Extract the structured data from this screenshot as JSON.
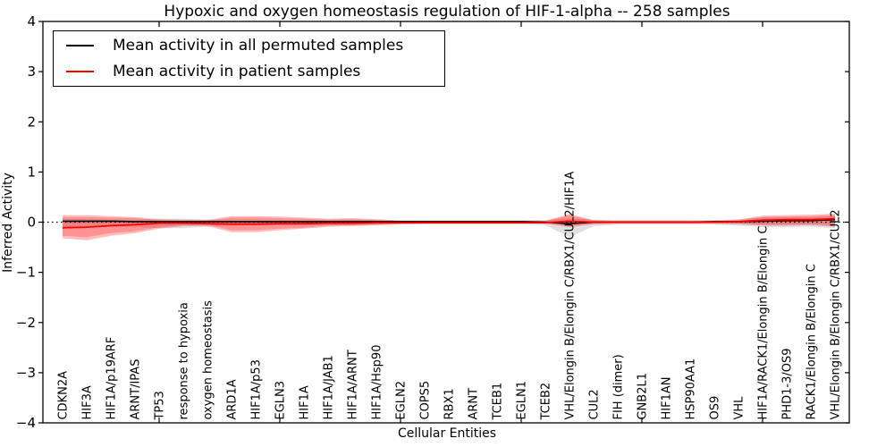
{
  "title": "Hypoxic and oxygen homeostasis regulation of HIF-1-alpha -- 258 samples",
  "axes": {
    "x_label": "Cellular Entities",
    "y_label": "Inferred Activity"
  },
  "legend": {
    "items": [
      {
        "label": "Mean activity in all permuted samples",
        "color": "#000000"
      },
      {
        "label": "Mean activity in patient samples",
        "color": "#ff0000"
      }
    ]
  },
  "chart_data": {
    "type": "line",
    "title": "Hypoxic and oxygen homeostasis regulation of HIF-1-alpha -- 258 samples",
    "xlabel": "Cellular Entities",
    "ylabel": "Inferred Activity",
    "ylim": [
      -4,
      4
    ],
    "grid": false,
    "background": "#ffffff",
    "legend_position": "upper left",
    "y_ticks": [
      {
        "value": 4,
        "label": "4"
      },
      {
        "value": 3,
        "label": "3"
      },
      {
        "value": 2,
        "label": "2"
      },
      {
        "value": 1,
        "label": "1"
      },
      {
        "value": 0,
        "label": "0"
      },
      {
        "value": -1,
        "label": "−1"
      },
      {
        "value": -2,
        "label": "−2"
      },
      {
        "value": -3,
        "label": "−3"
      },
      {
        "value": -4,
        "label": "−4"
      }
    ],
    "x_secondary_tick_indices": [
      4,
      9,
      14,
      19,
      24,
      29
    ],
    "zero_line": {
      "style": "dotted",
      "color": "#000000",
      "y": 0
    },
    "categories": [
      "CDKN2A",
      "HIF3A",
      "HIF1A/p19ARF",
      "ARNT/IPAS",
      "TP53",
      "response to hypoxia",
      "oxygen homeostasis",
      "ARD1A",
      "HIF1A/p53",
      "EGLN3",
      "HIF1A",
      "HIF1A/JAB1",
      "HIF1A/ARNT",
      "HIF1A/Hsp90",
      "EGLN2",
      "COPS5",
      "RBX1",
      "ARNT",
      "TCEB1",
      "EGLN1",
      "TCEB2",
      "VHL/Elongin B/Elongin C/RBX1/CUL2/HIF1A",
      "CUL2",
      "FIH (dimer)",
      "GNB2L1",
      "HIF1AN",
      "HSP90AA1",
      "OS9",
      "VHL",
      "HIF1A/RACK1/Elongin B/Elongin C",
      "PHD1-3/OS9",
      "RACK1/Elongin B/Elongin C",
      "VHL/Elongin B/Elongin C/RBX1/CUL2"
    ],
    "series": [
      {
        "name": "Mean activity in all permuted samples",
        "color": "#000000",
        "width": 1.6,
        "values": [
          0.02,
          0.02,
          0.02,
          0.01,
          0.01,
          0.01,
          0.01,
          0.01,
          0.01,
          0.01,
          0.01,
          0.01,
          0.01,
          0.01,
          0.01,
          0.01,
          0.01,
          0.01,
          0.01,
          0.01,
          0.0,
          -0.03,
          0.0,
          0.0,
          0.0,
          0.0,
          0.0,
          0.01,
          0.01,
          0.02,
          0.03,
          0.03,
          0.05
        ]
      },
      {
        "name": "Mean activity in patient samples",
        "color": "#ff0000",
        "width": 1.8,
        "values": [
          -0.11,
          -0.1,
          -0.07,
          -0.05,
          -0.02,
          -0.02,
          -0.03,
          -0.04,
          -0.04,
          -0.03,
          -0.03,
          -0.02,
          -0.02,
          -0.01,
          -0.01,
          -0.01,
          -0.01,
          -0.01,
          -0.01,
          -0.01,
          -0.01,
          0.02,
          0.0,
          0.0,
          0.0,
          0.0,
          0.0,
          0.0,
          0.01,
          0.04,
          0.05,
          0.05,
          0.07
        ]
      }
    ],
    "bands": [
      {
        "name": "permuted-samples-range",
        "color": "#000000",
        "opacity": 0.12,
        "upper": [
          0.06,
          0.06,
          0.05,
          0.05,
          0.07,
          0.07,
          0.05,
          0.04,
          0.04,
          0.04,
          0.04,
          0.04,
          0.04,
          0.04,
          0.04,
          0.04,
          0.04,
          0.04,
          0.04,
          0.04,
          0.04,
          0.08,
          0.05,
          0.04,
          0.04,
          0.04,
          0.04,
          0.04,
          0.06,
          0.1,
          0.1,
          0.1,
          0.12
        ],
        "lower": [
          -0.1,
          -0.1,
          -0.09,
          -0.09,
          -0.12,
          -0.12,
          -0.09,
          -0.07,
          -0.07,
          -0.06,
          -0.06,
          -0.06,
          -0.06,
          -0.06,
          -0.05,
          -0.05,
          -0.05,
          -0.05,
          -0.05,
          -0.05,
          -0.06,
          -0.3,
          -0.08,
          -0.05,
          -0.05,
          -0.05,
          -0.05,
          -0.05,
          -0.07,
          -0.1,
          -0.1,
          -0.09,
          -0.12
        ]
      },
      {
        "name": "patient-samples-range-outer",
        "color": "#ff0000",
        "opacity": 0.26,
        "upper": [
          0.14,
          0.14,
          0.12,
          0.1,
          0.06,
          0.05,
          0.05,
          0.12,
          0.12,
          0.11,
          0.09,
          0.07,
          0.08,
          0.06,
          0.03,
          0.03,
          0.03,
          0.03,
          0.03,
          0.03,
          0.03,
          0.16,
          0.04,
          0.03,
          0.03,
          0.03,
          0.03,
          0.03,
          0.05,
          0.13,
          0.14,
          0.15,
          0.17
        ],
        "lower": [
          -0.32,
          -0.36,
          -0.27,
          -0.22,
          -0.13,
          -0.08,
          -0.08,
          -0.2,
          -0.2,
          -0.16,
          -0.13,
          -0.09,
          -0.08,
          -0.06,
          -0.04,
          -0.03,
          -0.03,
          -0.03,
          -0.03,
          -0.03,
          -0.03,
          -0.1,
          -0.04,
          -0.03,
          -0.03,
          -0.03,
          -0.03,
          -0.03,
          -0.04,
          -0.07,
          -0.07,
          -0.06,
          -0.09
        ]
      },
      {
        "name": "patient-samples-range-inner",
        "color": "#ff0000",
        "opacity": 0.22,
        "upper": [
          0.1,
          0.1,
          0.09,
          0.08,
          0.04,
          0.03,
          0.03,
          0.09,
          0.09,
          0.08,
          0.07,
          0.05,
          0.06,
          0.04,
          0.02,
          0.02,
          0.02,
          0.02,
          0.02,
          0.02,
          0.02,
          0.14,
          0.03,
          0.02,
          0.02,
          0.02,
          0.02,
          0.02,
          0.03,
          0.1,
          0.11,
          0.12,
          0.14
        ],
        "lower": [
          -0.27,
          -0.3,
          -0.22,
          -0.18,
          -0.1,
          -0.06,
          -0.05,
          -0.16,
          -0.16,
          -0.13,
          -0.11,
          -0.07,
          -0.06,
          -0.04,
          -0.03,
          -0.02,
          -0.02,
          -0.02,
          -0.02,
          -0.02,
          -0.02,
          -0.07,
          -0.03,
          -0.02,
          -0.02,
          -0.02,
          -0.02,
          -0.02,
          -0.03,
          -0.05,
          -0.05,
          -0.04,
          -0.06
        ]
      }
    ]
  }
}
